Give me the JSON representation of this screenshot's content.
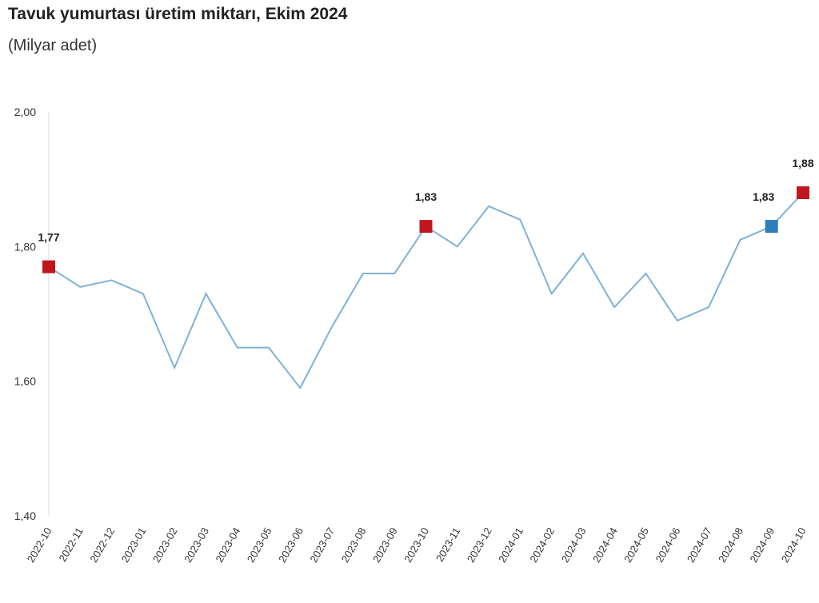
{
  "chart_data": {
    "type": "line",
    "title": "Tavuk yumurtası üretim miktarı, Ekim 2024",
    "subtitle": "(Milyar adet)",
    "xlabel": "",
    "ylabel": "",
    "ylim": [
      1.4,
      2.0
    ],
    "yticks": [
      "1,40",
      "1,60",
      "1,80",
      "2,00"
    ],
    "ytick_values": [
      1.4,
      1.6,
      1.8,
      2.0
    ],
    "categories": [
      "2022-10",
      "2022-11",
      "2022-12",
      "2023-01",
      "2023-02",
      "2023-03",
      "2023-04",
      "2023-05",
      "2023-06",
      "2023-07",
      "2023-08",
      "2023-09",
      "2023-10",
      "2023-11",
      "2023-12",
      "2024-01",
      "2024-02",
      "2024-03",
      "2024-04",
      "2024-05",
      "2024-06",
      "2024-07",
      "2024-08",
      "2024-09",
      "2024-10"
    ],
    "values": [
      1.77,
      1.74,
      1.75,
      1.73,
      1.62,
      1.73,
      1.65,
      1.65,
      1.59,
      1.68,
      1.76,
      1.76,
      1.83,
      1.8,
      1.86,
      1.84,
      1.73,
      1.79,
      1.71,
      1.76,
      1.69,
      1.71,
      1.81,
      1.83,
      1.88
    ],
    "highlights": [
      {
        "index": 0,
        "label": "1,77",
        "color": "#c0161e"
      },
      {
        "index": 12,
        "label": "1,83",
        "color": "#c0161e"
      },
      {
        "index": 23,
        "label": "1,83",
        "color": "#2e7dbf"
      },
      {
        "index": 24,
        "label": "1,88",
        "color": "#c0161e"
      }
    ],
    "line_color": "#7fb1d9",
    "grid": false,
    "legend": "none"
  }
}
